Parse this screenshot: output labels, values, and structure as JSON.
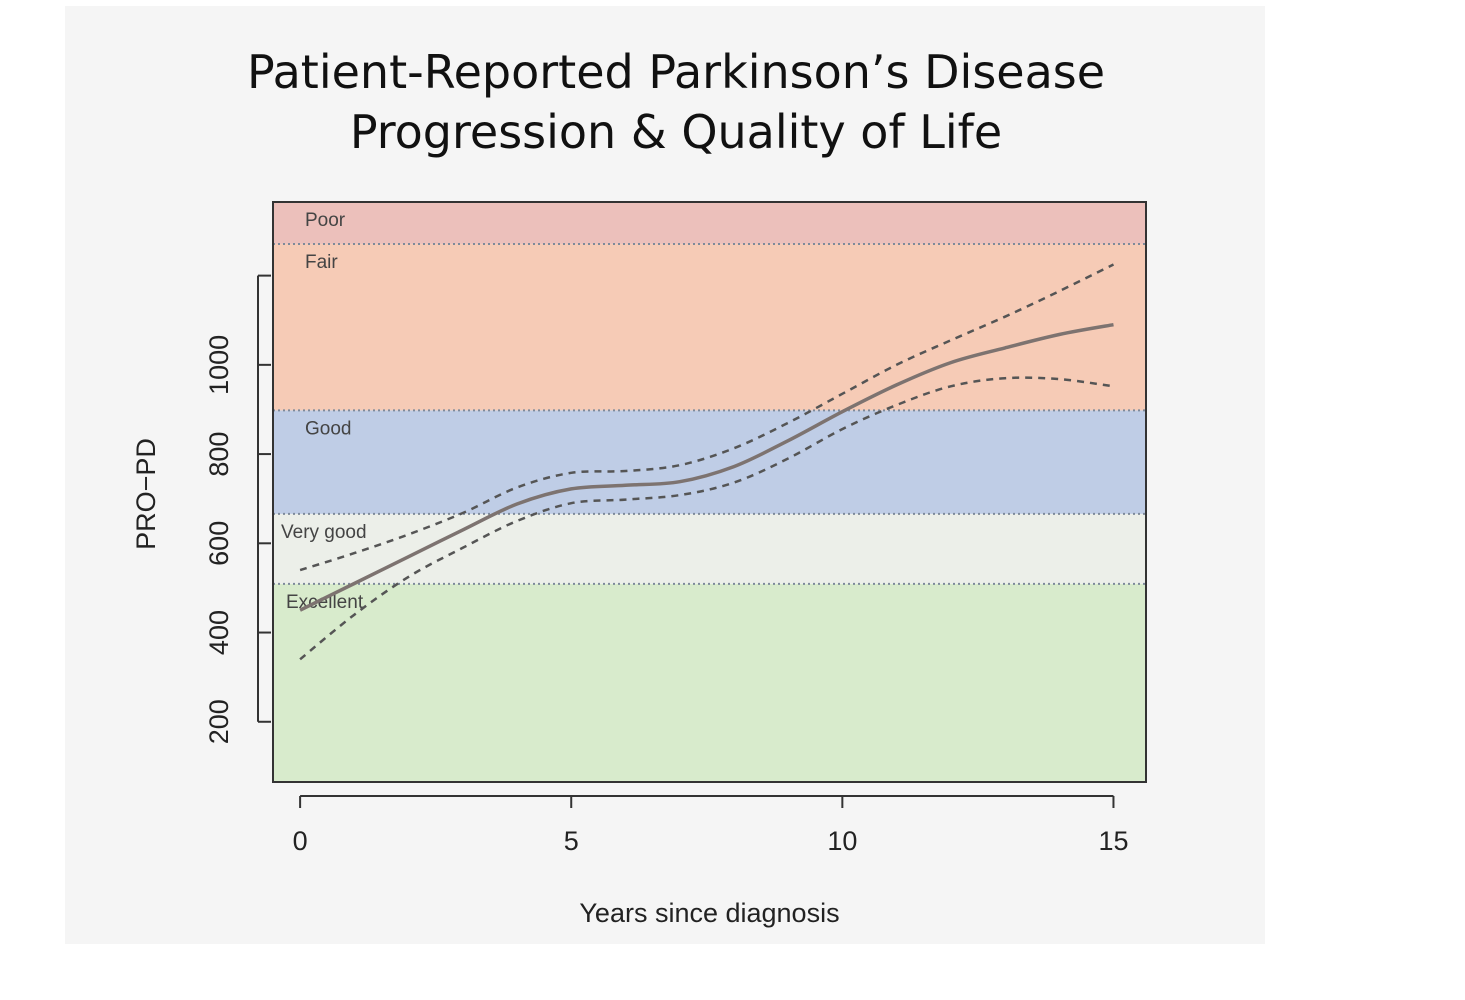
{
  "chart_data": {
    "type": "line",
    "title": "Patient-Reported Parkinson’s Disease Progression & Quality of Life",
    "title_lines": [
      "Patient-Reported Parkinson’s Disease",
      "Progression & Quality of Life"
    ],
    "xlabel": "Years since diagnosis",
    "ylabel": "PRO−PD",
    "xlim": [
      -0.5,
      15.6
    ],
    "ylim": [
      65,
      1365
    ],
    "xticks": [
      0,
      5,
      10,
      15
    ],
    "yticks": [
      200,
      400,
      600,
      800,
      1000,
      1200
    ],
    "ytick_labels": [
      "200",
      "400",
      "600",
      "800",
      "1000",
      ""
    ],
    "grid": false,
    "bands": [
      {
        "label": "Excellent",
        "from": 65,
        "to": 509,
        "color": "#d8ebcc"
      },
      {
        "label": "Very good",
        "from": 509,
        "to": 666,
        "color": "#ecefe9"
      },
      {
        "label": "Good",
        "from": 666,
        "to": 898,
        "color": "#bfcde6"
      },
      {
        "label": "Fair",
        "from": 898,
        "to": 1271,
        "color": "#f6cbb6"
      },
      {
        "label": "Poor",
        "from": 1271,
        "to": 1365,
        "color": "#ecc0bb"
      }
    ],
    "series": [
      {
        "role": "estimate",
        "style": "solid",
        "color": "#7d7370",
        "x": [
          0,
          1,
          2,
          3,
          4,
          5,
          6,
          7,
          8,
          9,
          10,
          11,
          12,
          13,
          14,
          15
        ],
        "y": [
          450,
          510,
          570,
          630,
          688,
          722,
          730,
          738,
          772,
          830,
          895,
          955,
          1005,
          1038,
          1068,
          1090
        ]
      },
      {
        "role": "upper",
        "style": "dashed",
        "color": "#555555",
        "x": [
          0,
          1,
          2,
          3,
          4,
          5,
          6,
          7,
          8,
          9,
          10,
          11,
          12,
          13,
          14,
          15
        ],
        "y": [
          540,
          578,
          620,
          668,
          725,
          758,
          762,
          775,
          813,
          870,
          935,
          1000,
          1055,
          1108,
          1165,
          1225
        ]
      },
      {
        "role": "lower",
        "style": "dashed",
        "color": "#555555",
        "x": [
          0,
          1,
          2,
          3,
          4,
          5,
          6,
          7,
          8,
          9,
          10,
          11,
          12,
          13,
          14,
          15
        ],
        "y": [
          340,
          440,
          525,
          590,
          650,
          690,
          698,
          708,
          736,
          790,
          856,
          910,
          952,
          970,
          968,
          952
        ]
      }
    ]
  }
}
